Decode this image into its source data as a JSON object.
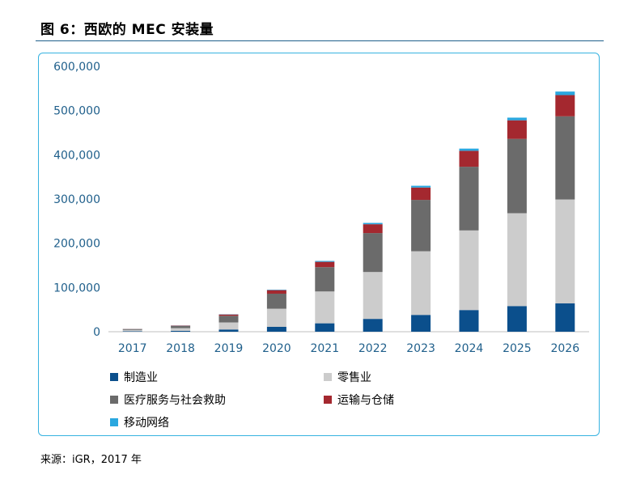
{
  "header": {
    "title": "图 6：西欧的 MEC 安装量"
  },
  "source": "来源：iGR，2017 年",
  "colors": {
    "manufacturing": "#0b4f8c",
    "retail": "#cccccc",
    "healthcare_social": "#6b6b6b",
    "transport_storage": "#a4282f",
    "mobile_network": "#2aa7df",
    "axis_text": "#1f5f8b"
  },
  "chart_data": {
    "type": "bar",
    "stacked": true,
    "title": "",
    "xlabel": "",
    "ylabel": "",
    "ylim": [
      0,
      600000
    ],
    "yticks": [
      0,
      100000,
      200000,
      300000,
      400000,
      500000,
      600000
    ],
    "ytick_labels": [
      "0",
      "100,000",
      "200,000",
      "300,000",
      "400,000",
      "500,000",
      "600,000"
    ],
    "categories": [
      "2017",
      "2018",
      "2019",
      "2020",
      "2021",
      "2022",
      "2023",
      "2024",
      "2025",
      "2026"
    ],
    "series": [
      {
        "name": "制造业",
        "color_key": "manufacturing",
        "values": [
          1000,
          2000,
          5000,
          11000,
          19000,
          29000,
          38000,
          49000,
          58000,
          64000
        ]
      },
      {
        "name": "零售业",
        "color_key": "retail",
        "values": [
          3000,
          6000,
          16000,
          41000,
          72000,
          106000,
          144000,
          180000,
          210000,
          235000
        ]
      },
      {
        "name": "医疗服务与社会救助",
        "color_key": "healthcare_social",
        "values": [
          2000,
          5000,
          15000,
          34000,
          55000,
          88000,
          116000,
          144000,
          168000,
          188000
        ]
      },
      {
        "name": "运输与仓储",
        "color_key": "transport_storage",
        "values": [
          300,
          800,
          3000,
          8000,
          12000,
          20000,
          28000,
          36000,
          42000,
          48000
        ]
      },
      {
        "name": "移动网络",
        "color_key": "mobile_network",
        "values": [
          100,
          300,
          500,
          1000,
          2000,
          3000,
          4000,
          5000,
          6000,
          8000
        ]
      }
    ],
    "legend": {
      "items": [
        "制造业",
        "零售业",
        "医疗服务与社会救助",
        "运输与仓储",
        "移动网络"
      ],
      "placement": "bottom"
    }
  }
}
